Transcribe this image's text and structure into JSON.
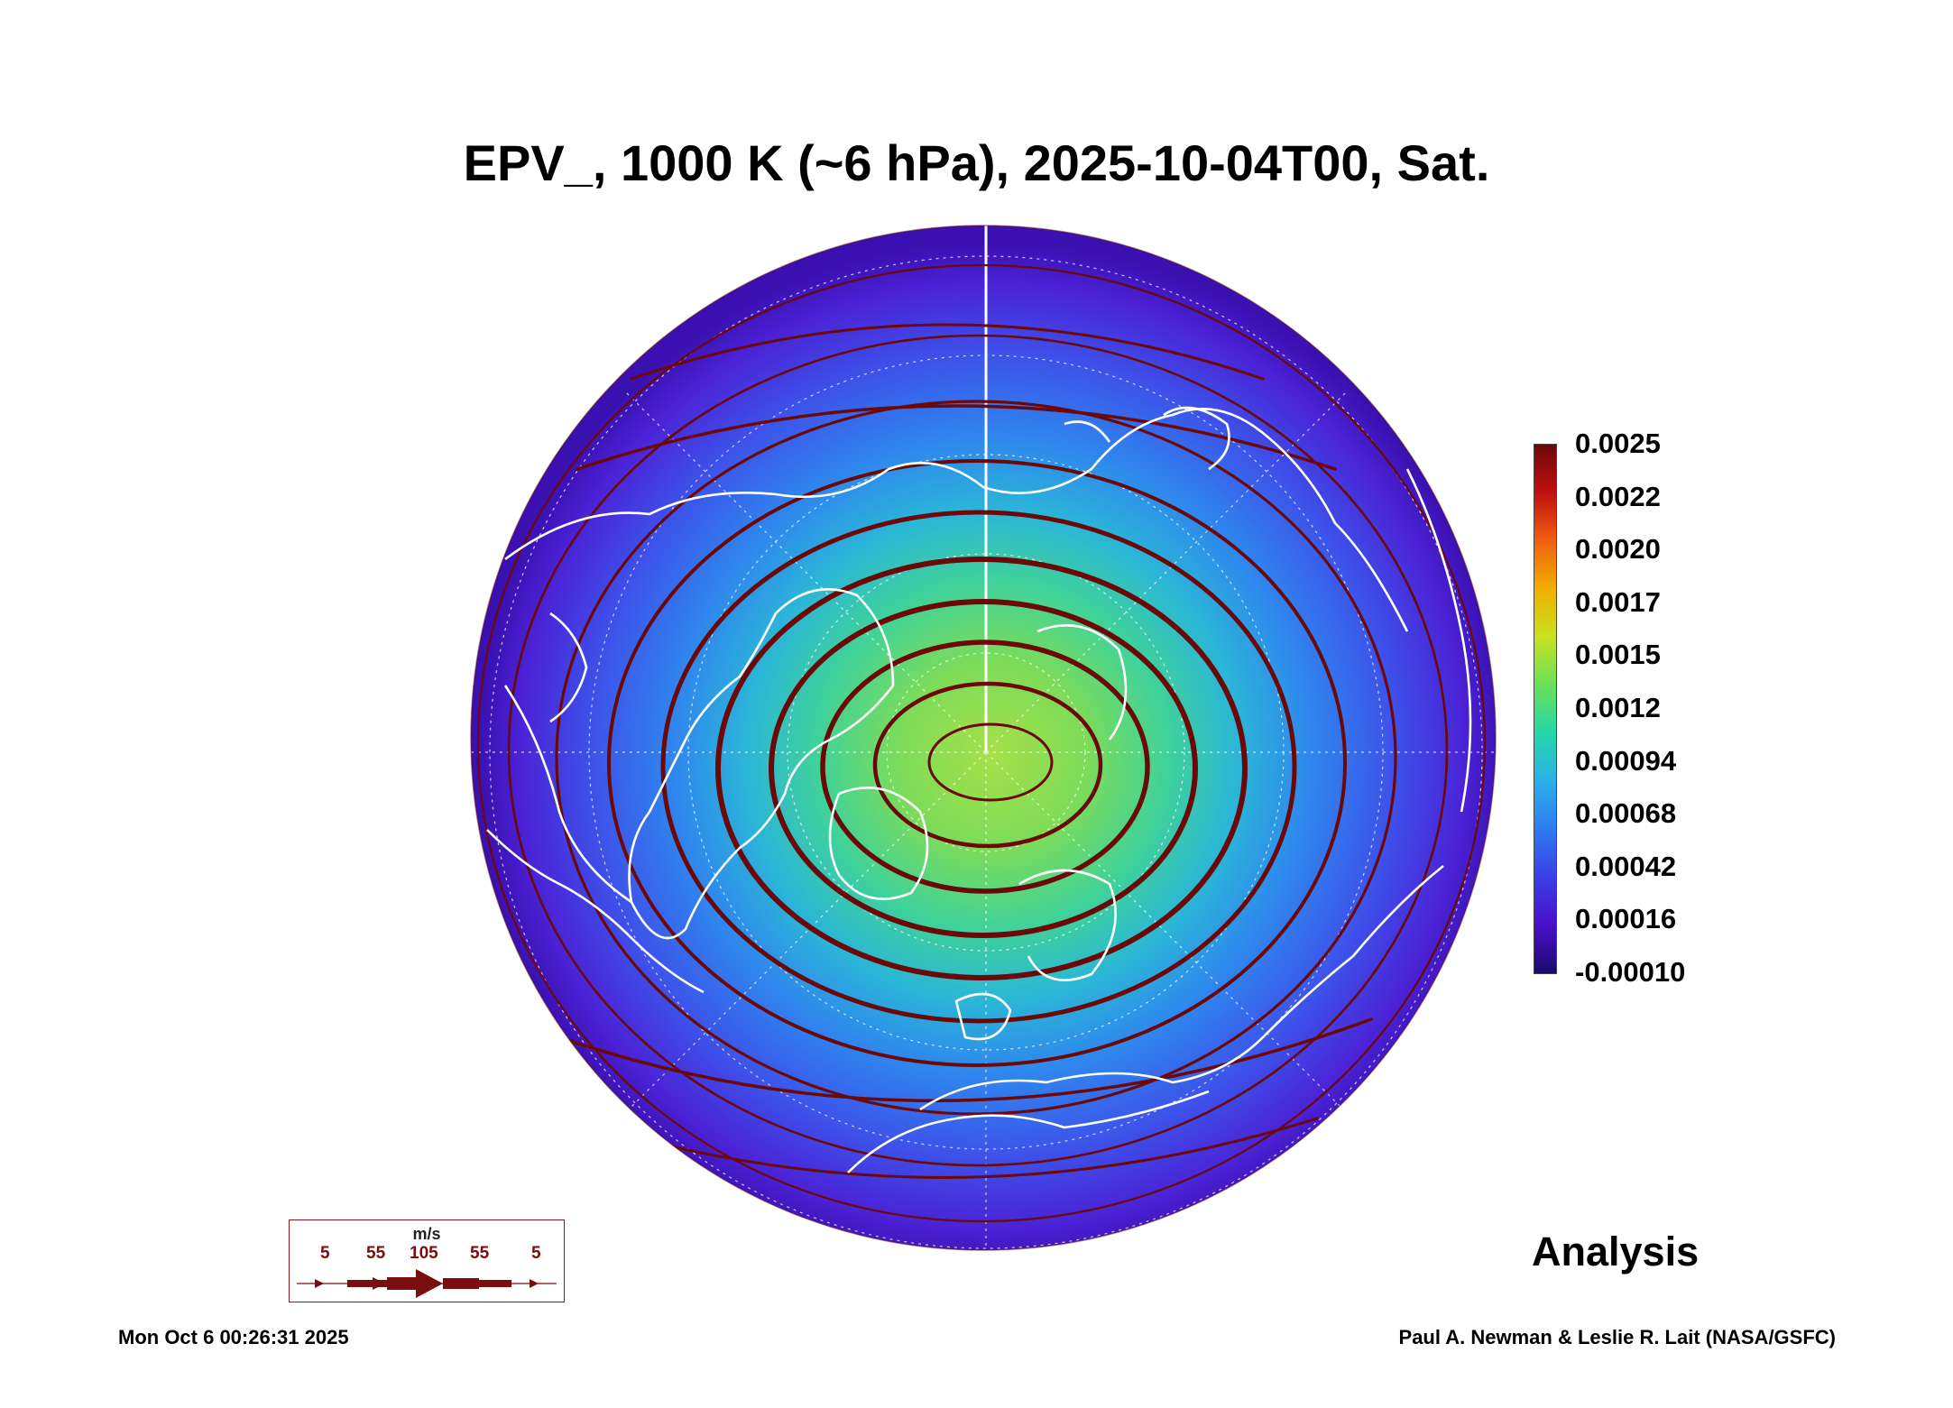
{
  "title": "EPV_, 1000 K (~6 hPa), 2025-10-04T00, Sat.",
  "colorbar": {
    "ticks": [
      "0.0025",
      "0.0022",
      "0.0020",
      "0.0017",
      "0.0015",
      "0.0012",
      "0.00094",
      "0.00068",
      "0.00042",
      "0.00016",
      "-0.00010"
    ],
    "min": -0.0001,
    "max": 0.0025
  },
  "legend": {
    "unit": "m/s",
    "values": [
      "5",
      "55",
      "105",
      "55",
      "5"
    ]
  },
  "label_analysis": "Analysis",
  "footer": {
    "timestamp": "Mon Oct  6 00:26:31 2025",
    "credit": "Paul A. Newman & Leslie R. Lait (NASA/GSFC)"
  },
  "colors": {
    "streamline": "#6b0808",
    "coastline": "#ffffff",
    "scale": [
      "#1b0a6b",
      "#4a10c8",
      "#3b3fe8",
      "#2f7bf0",
      "#2bb0e8",
      "#24d8a8",
      "#6be05a",
      "#c8e020",
      "#f0b000",
      "#f06010",
      "#c01010",
      "#6b0808"
    ]
  }
}
